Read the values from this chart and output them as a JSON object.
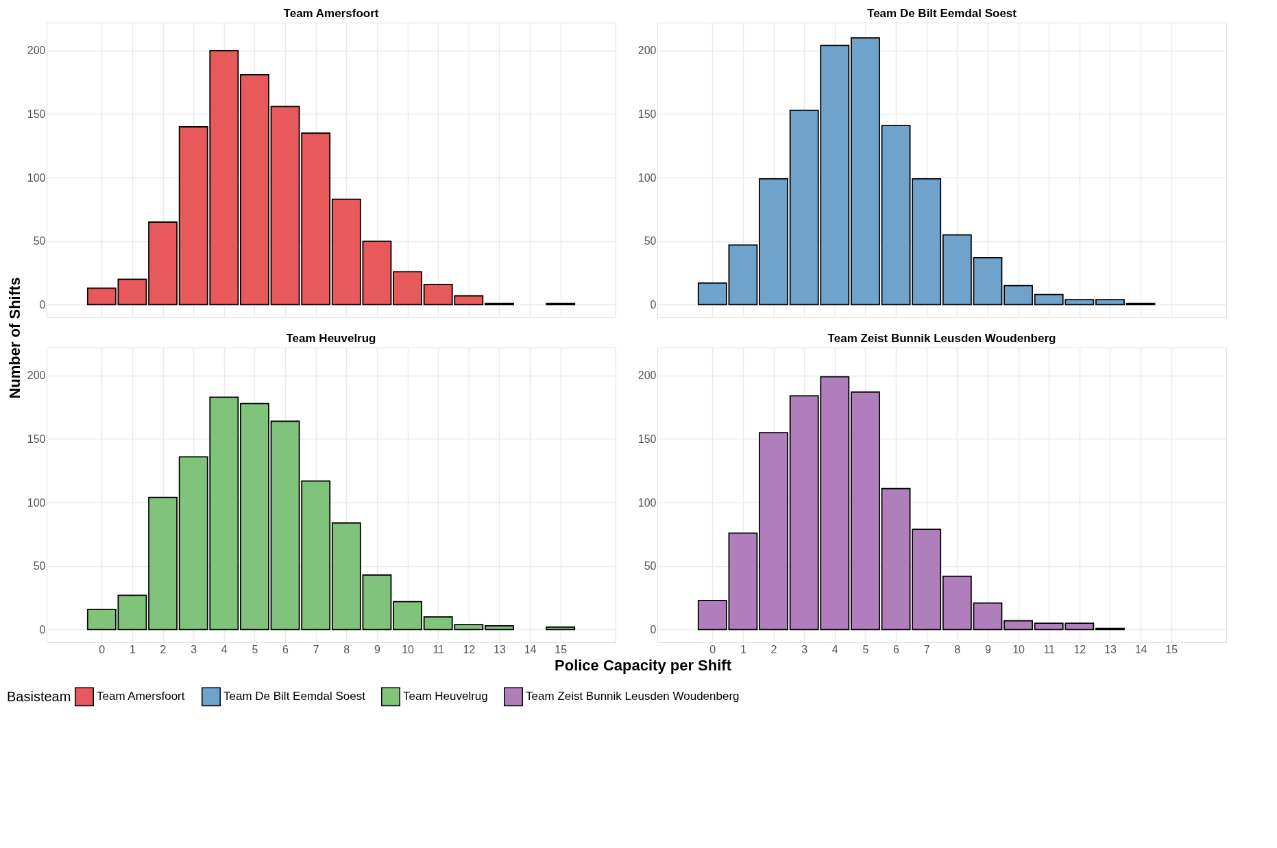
{
  "chart_data": [
    {
      "type": "bar",
      "title": "Team Amersfoort",
      "ylabel": "Number of Shifts",
      "legend_title": "Basisteam",
      "legend": "bottom",
      "grid": true,
      "tick_labels": "y",
      "x": [
        0,
        1,
        2,
        3,
        4,
        5,
        6,
        7,
        8,
        9,
        10,
        11,
        12,
        13,
        14,
        15
      ],
      "xlim": [
        -1.8,
        16.8
      ],
      "xticks": [
        0,
        1,
        2,
        3,
        4,
        5,
        6,
        7,
        8,
        9,
        10,
        11,
        12,
        13,
        14,
        15
      ],
      "ylim": [
        -10,
        222
      ],
      "yticks": [
        0,
        50,
        100,
        150,
        200
      ],
      "series": [
        {
          "name": "Team Amersfoort",
          "color": "#e8595b",
          "values": [
            13,
            20,
            65,
            140,
            200,
            181,
            156,
            135,
            83,
            50,
            26,
            16,
            7,
            1,
            null,
            1
          ]
        }
      ]
    },
    {
      "type": "bar",
      "title": "Team De Bilt Eemdal Soest",
      "legend": "bottom",
      "grid": true,
      "tick_labels": "y",
      "x": [
        0,
        1,
        2,
        3,
        4,
        5,
        6,
        7,
        8,
        9,
        10,
        11,
        12,
        13,
        14
      ],
      "xlim": [
        -1.8,
        16.8
      ],
      "xticks": [
        0,
        1,
        2,
        3,
        4,
        5,
        6,
        7,
        8,
        9,
        10,
        11,
        12,
        13,
        14,
        15
      ],
      "ylim": [
        -10,
        222
      ],
      "yticks": [
        0,
        50,
        100,
        150,
        200
      ],
      "series": [
        {
          "name": "Team De Bilt Eemdal Soest",
          "color": "#6fa3cc",
          "values": [
            17,
            47,
            99,
            153,
            204,
            210,
            141,
            99,
            55,
            37,
            15,
            8,
            4,
            4,
            1
          ]
        }
      ]
    },
    {
      "type": "bar",
      "title": "Team Heuvelrug",
      "xlabel": "Police Capacity per Shift",
      "legend": "bottom",
      "grid": true,
      "x": [
        0,
        1,
        2,
        3,
        4,
        5,
        6,
        7,
        8,
        9,
        10,
        11,
        12,
        13,
        14,
        15
      ],
      "xlim": [
        -1.8,
        16.8
      ],
      "xticks": [
        0,
        1,
        2,
        3,
        4,
        5,
        6,
        7,
        8,
        9,
        10,
        11,
        12,
        13,
        14,
        15
      ],
      "ylim": [
        -10,
        222
      ],
      "yticks": [
        0,
        50,
        100,
        150,
        200
      ],
      "series": [
        {
          "name": "Team Heuvelrug",
          "color": "#80c47b",
          "values": [
            16,
            27,
            104,
            136,
            183,
            178,
            164,
            117,
            84,
            43,
            22,
            10,
            4,
            3,
            null,
            2
          ]
        }
      ]
    },
    {
      "type": "bar",
      "title": "Team Zeist Bunnik Leusden Woudenberg",
      "legend": "bottom",
      "grid": true,
      "x": [
        0,
        1,
        2,
        3,
        4,
        5,
        6,
        7,
        8,
        9,
        10,
        11,
        12,
        13
      ],
      "xlim": [
        -1.8,
        16.8
      ],
      "xticks": [
        0,
        1,
        2,
        3,
        4,
        5,
        6,
        7,
        8,
        9,
        10,
        11,
        12,
        13,
        14,
        15
      ],
      "ylim": [
        -10,
        222
      ],
      "yticks": [
        0,
        50,
        100,
        150,
        200
      ],
      "series": [
        {
          "name": "Team Zeist Bunnik Leusden Woudenberg",
          "color": "#b07fbb",
          "values": [
            23,
            76,
            155,
            184,
            199,
            187,
            111,
            79,
            42,
            21,
            7,
            5,
            5,
            1
          ]
        }
      ]
    }
  ]
}
